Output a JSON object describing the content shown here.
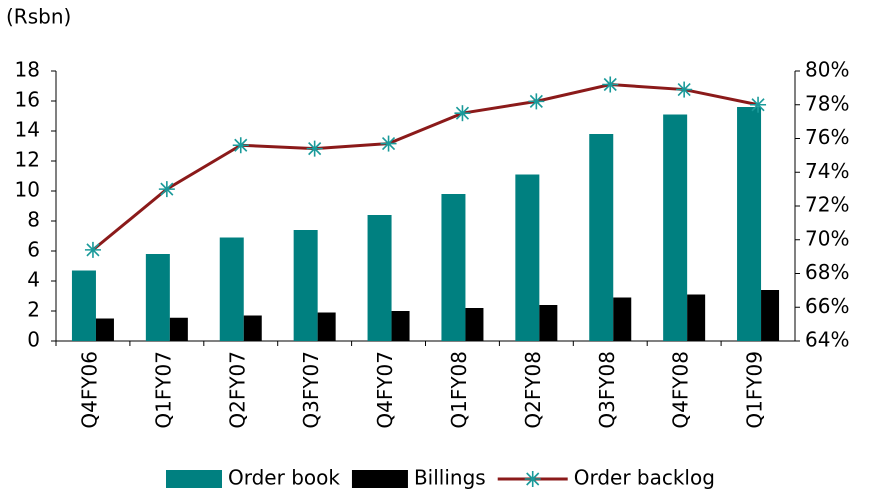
{
  "chart_data": {
    "type": "bar",
    "ylabel": "(Rsbn)",
    "categories": [
      "Q4FY06",
      "Q1FY07",
      "Q2FY07",
      "Q3FY07",
      "Q4FY07",
      "Q1FY08",
      "Q2FY08",
      "Q3FY08",
      "Q4FY08",
      "Q1FY09"
    ],
    "series": [
      {
        "name": "Order book",
        "type": "bar",
        "color": "#008080",
        "values": [
          4.7,
          5.8,
          6.9,
          7.4,
          8.4,
          9.8,
          11.1,
          13.8,
          15.1,
          15.6
        ]
      },
      {
        "name": "Billings",
        "type": "bar",
        "color": "#000000",
        "values": [
          1.5,
          1.55,
          1.7,
          1.9,
          2.0,
          2.2,
          2.4,
          2.9,
          3.1,
          3.4
        ]
      },
      {
        "name": "Order backlog",
        "type": "line",
        "axis": "y2",
        "color": "#8b1a1a",
        "marker_color": "#1a9a9a",
        "values": [
          69.4,
          73.0,
          75.6,
          75.4,
          75.7,
          77.5,
          78.2,
          79.2,
          78.9,
          78.0
        ]
      }
    ],
    "ylim": [
      0,
      18
    ],
    "yticks": [
      0,
      2,
      4,
      6,
      8,
      10,
      12,
      14,
      16,
      18
    ],
    "y2lim": [
      64,
      80
    ],
    "y2ticks": [
      {
        "value": 64,
        "label": "64%"
      },
      {
        "value": 66,
        "label": "66%"
      },
      {
        "value": 68,
        "label": "68%"
      },
      {
        "value": 70,
        "label": "70%"
      },
      {
        "value": 72,
        "label": "72%"
      },
      {
        "value": 74,
        "label": "74%"
      },
      {
        "value": 76,
        "label": "76%"
      },
      {
        "value": 78,
        "label": "78%"
      },
      {
        "value": 80,
        "label": "80%"
      }
    ],
    "legend": "bottom"
  }
}
